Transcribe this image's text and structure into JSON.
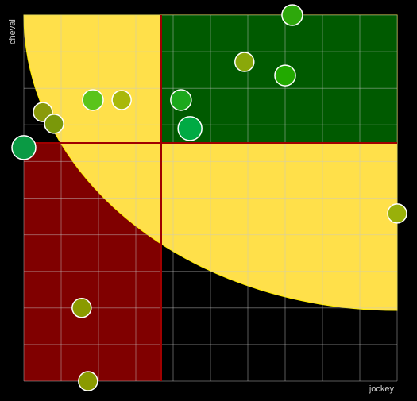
{
  "chart_data": {
    "type": "scatter",
    "x_label": "jockey",
    "y_label": "cheval",
    "xlim": [
      0,
      10
    ],
    "ylim": [
      0,
      10
    ],
    "grid": true,
    "x": [
      7.19,
      5.91,
      7.0,
      1.85,
      2.62,
      4.21,
      0.51,
      0.81,
      4.45,
      0.0,
      10.0,
      1.55,
      1.72
    ],
    "y": [
      10.0,
      8.72,
      8.35,
      7.68,
      7.68,
      7.68,
      7.35,
      7.03,
      6.9,
      6.38,
      4.58,
      2.0,
      0.0
    ],
    "sizes": [
      13,
      12,
      13,
      13,
      12,
      13,
      12,
      12,
      15,
      15,
      12,
      12,
      12
    ],
    "colors": [
      "#2ea80c",
      "#8aa80a",
      "#22aa00",
      "#5ac41a",
      "#a8b80a",
      "#1ca81c",
      "#8a9a0a",
      "#7a980a",
      "#00aa44",
      "#0a9a44",
      "#99b00a",
      "#8a9a00",
      "#8a9a00"
    ]
  }
}
